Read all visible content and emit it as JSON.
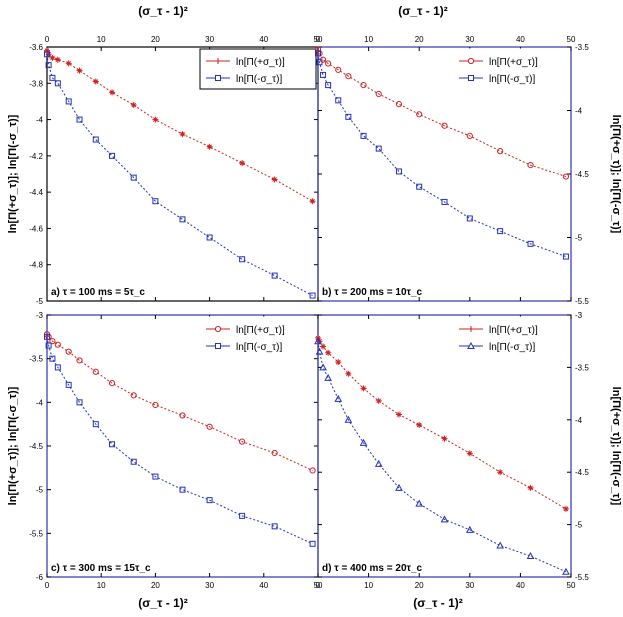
{
  "figure": {
    "top_axis_label": "(σ_τ - 1)²",
    "bottom_axis_label": "(σ_τ - 1)²"
  },
  "chart_data": [
    {
      "panel": "a",
      "type": "line",
      "label": "a) τ = 100 ms = 5τ_c",
      "xlabel_top": "(σ_τ - 1)²",
      "ylabel": "ln[Π(+σ_τ)]; ln[Π(-σ_τ)]",
      "xlim": [
        0,
        50
      ],
      "ylim": [
        -5,
        -3.6
      ],
      "xticks": [
        0,
        10,
        20,
        30,
        40,
        50
      ],
      "yticks": [
        -3.6,
        -3.8,
        -4,
        -4.2,
        -4.4,
        -4.6,
        -4.8,
        -5
      ],
      "legend_position": "top-right",
      "series": [
        {
          "name": "ln[Π(+σ_τ)]",
          "color": "#cc2222",
          "marker": "star",
          "x": [
            0,
            0.3,
            1,
            2,
            4,
            6,
            9,
            12,
            16,
            20,
            25,
            30,
            36,
            42,
            49
          ],
          "y": [
            -3.62,
            -3.64,
            -3.66,
            -3.67,
            -3.69,
            -3.73,
            -3.79,
            -3.85,
            -3.92,
            -4.0,
            -4.08,
            -4.15,
            -4.24,
            -4.33,
            -4.45
          ]
        },
        {
          "name": "ln[Π(-σ_τ)]",
          "color": "#2233bb",
          "marker": "square",
          "x": [
            0,
            0.3,
            1,
            2,
            4,
            6,
            9,
            12,
            16,
            20,
            25,
            30,
            36,
            42,
            49
          ],
          "y": [
            -3.64,
            -3.7,
            -3.77,
            -3.8,
            -3.9,
            -4.0,
            -4.11,
            -4.2,
            -4.32,
            -4.45,
            -4.55,
            -4.65,
            -4.77,
            -4.86,
            -4.97
          ]
        }
      ]
    },
    {
      "panel": "b",
      "type": "line",
      "label": "b) τ = 200 ms = 10τ_c",
      "xlabel_top": "(σ_τ - 1)²",
      "ylabel": "ln[Π(+σ_τ)]; ln[Π(-σ_τ)]",
      "xlim": [
        0,
        50
      ],
      "ylim": [
        -5.5,
        -3.5
      ],
      "xticks": [
        0,
        10,
        20,
        30,
        40,
        50
      ],
      "yticks": [
        -3.5,
        -4,
        -4.5,
        -5,
        -5.5
      ],
      "legend_position": "top-right",
      "series": [
        {
          "name": "ln[Π(+σ_τ)]",
          "color": "#cc2222",
          "marker": "circle",
          "x": [
            0,
            0.3,
            1,
            2,
            4,
            6,
            9,
            12,
            16,
            20,
            25,
            30,
            36,
            42,
            49
          ],
          "y": [
            -3.52,
            -3.55,
            -3.6,
            -3.63,
            -3.68,
            -3.73,
            -3.8,
            -3.87,
            -3.95,
            -4.03,
            -4.12,
            -4.2,
            -4.32,
            -4.43,
            -4.52
          ]
        },
        {
          "name": "ln[Π(-σ_τ)]",
          "color": "#2233bb",
          "marker": "square",
          "x": [
            0,
            0.3,
            1,
            2,
            4,
            6,
            9,
            12,
            16,
            20,
            25,
            30,
            36,
            42,
            49
          ],
          "y": [
            -3.55,
            -3.62,
            -3.72,
            -3.8,
            -3.92,
            -4.05,
            -4.2,
            -4.3,
            -4.48,
            -4.6,
            -4.72,
            -4.85,
            -4.95,
            -5.05,
            -5.15
          ]
        }
      ]
    },
    {
      "panel": "c",
      "type": "line",
      "label": "c) τ = 300 ms = 15τ_c",
      "xlabel": "(σ_τ - 1)²",
      "ylabel": "ln[Π(+σ_τ)]; ln[Π(-σ_τ)]",
      "xlim": [
        0,
        50
      ],
      "ylim": [
        -6,
        -3
      ],
      "xticks": [
        0,
        10,
        20,
        30,
        40,
        50
      ],
      "yticks": [
        -3,
        -3.5,
        -4,
        -4.5,
        -5,
        -5.5,
        -6
      ],
      "legend_position": "top-right",
      "series": [
        {
          "name": "ln[Π(+σ_τ)]",
          "color": "#cc2222",
          "marker": "circle",
          "x": [
            0,
            0.3,
            1,
            2,
            4,
            6,
            9,
            12,
            16,
            20,
            25,
            30,
            36,
            42,
            49
          ],
          "y": [
            -3.22,
            -3.25,
            -3.3,
            -3.34,
            -3.42,
            -3.52,
            -3.65,
            -3.78,
            -3.92,
            -4.03,
            -4.15,
            -4.28,
            -4.45,
            -4.58,
            -4.78
          ]
        },
        {
          "name": "ln[Π(-σ_τ)]",
          "color": "#2233bb",
          "marker": "square",
          "x": [
            0,
            0.3,
            1,
            2,
            4,
            6,
            9,
            12,
            16,
            20,
            25,
            30,
            36,
            42,
            49
          ],
          "y": [
            -3.25,
            -3.35,
            -3.5,
            -3.6,
            -3.8,
            -4.0,
            -4.25,
            -4.48,
            -4.68,
            -4.85,
            -5.0,
            -5.12,
            -5.3,
            -5.42,
            -5.62
          ]
        }
      ]
    },
    {
      "panel": "d",
      "type": "line",
      "label": "d) τ = 400 ms = 20τ_c",
      "xlabel": "(σ_τ - 1)²",
      "ylabel": "ln[Π(+σ_τ)]; ln[Π(-σ_τ)]",
      "xlim": [
        0,
        50
      ],
      "ylim": [
        -5.5,
        -3
      ],
      "xticks": [
        0,
        10,
        20,
        30,
        40,
        50
      ],
      "yticks": [
        -3,
        -3.5,
        -4,
        -4.5,
        -5,
        -5.5
      ],
      "legend_position": "top-right",
      "series": [
        {
          "name": "ln[Π(+σ_τ)]",
          "color": "#cc2222",
          "marker": "star",
          "x": [
            0,
            0.3,
            1,
            2,
            4,
            6,
            9,
            12,
            16,
            20,
            25,
            30,
            36,
            42,
            49
          ],
          "y": [
            -3.22,
            -3.25,
            -3.3,
            -3.36,
            -3.45,
            -3.56,
            -3.7,
            -3.82,
            -3.95,
            -4.05,
            -4.18,
            -4.32,
            -4.5,
            -4.65,
            -4.85
          ]
        },
        {
          "name": "ln[Π(-σ_τ)]",
          "color": "#2233bb",
          "marker": "triangle",
          "x": [
            0,
            0.3,
            1,
            2,
            4,
            6,
            9,
            12,
            16,
            20,
            25,
            30,
            36,
            42,
            49
          ],
          "y": [
            -3.25,
            -3.35,
            -3.5,
            -3.6,
            -3.8,
            -4.0,
            -4.22,
            -4.42,
            -4.65,
            -4.8,
            -4.95,
            -5.05,
            -5.2,
            -5.3,
            -5.45
          ]
        }
      ]
    }
  ]
}
